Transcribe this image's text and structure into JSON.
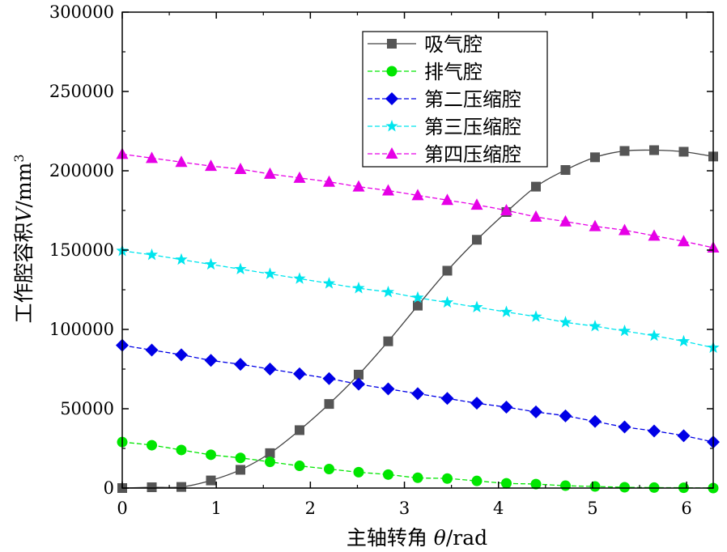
{
  "chart_data": {
    "type": "line",
    "title": "",
    "xlabel": "主轴转角 θ/rad",
    "xlabel_prefix": "主轴转角 ",
    "xlabel_symbol": "θ",
    "xlabel_suffix": "/rad",
    "ylabel": "工作腔容积V/mm3",
    "ylabel_prefix": "工作腔容积",
    "ylabel_symbol": "V",
    "ylabel_unit": "/mm",
    "ylabel_sup": "3",
    "xlim": [
      0,
      6.2832
    ],
    "ylim": [
      0,
      300000
    ],
    "xticks": [
      0,
      1,
      2,
      3,
      4,
      5,
      6
    ],
    "xtick_labels": [
      "0",
      "1",
      "2",
      "3",
      "4",
      "5",
      "6"
    ],
    "yticks": [
      0,
      50000,
      100000,
      150000,
      200000,
      250000,
      300000
    ],
    "ytick_labels": [
      "0",
      "50000",
      "100000",
      "150000",
      "200000",
      "250000",
      "300000"
    ],
    "legend_position": "top-center",
    "series": [
      {
        "name": "吸气腔",
        "color": "#555555",
        "marker": "square",
        "x": [
          0,
          0.3142,
          0.6283,
          0.9425,
          1.2566,
          1.5708,
          1.885,
          2.1991,
          2.5133,
          2.8274,
          3.1416,
          3.4558,
          3.7699,
          4.0841,
          4.3982,
          4.7124,
          5.0265,
          5.3407,
          5.6549,
          5.969,
          6.2832
        ],
        "values": [
          0,
          500,
          700,
          4800,
          11500,
          22000,
          36500,
          53000,
          71500,
          92500,
          115000,
          137000,
          156500,
          174000,
          190000,
          200500,
          208500,
          212500,
          213000,
          212000,
          209000
        ]
      },
      {
        "name": "排气腔",
        "color": "#00e600",
        "marker": "circle",
        "x": [
          0,
          0.3142,
          0.6283,
          0.9425,
          1.2566,
          1.5708,
          1.885,
          2.1991,
          2.5133,
          2.8274,
          3.1416,
          3.4558,
          3.7699,
          4.0841,
          4.3982,
          4.7124,
          5.0265,
          5.3407,
          5.6549,
          5.969,
          6.2832
        ],
        "values": [
          29000,
          27000,
          24000,
          21000,
          19000,
          16500,
          14000,
          12000,
          10000,
          8500,
          6500,
          6000,
          4500,
          3000,
          2500,
          1500,
          1000,
          500,
          300,
          200,
          0
        ]
      },
      {
        "name": "第二压缩腔",
        "color": "#0000e6",
        "marker": "diamond",
        "x": [
          0,
          0.3142,
          0.6283,
          0.9425,
          1.2566,
          1.5708,
          1.885,
          2.1991,
          2.5133,
          2.8274,
          3.1416,
          3.4558,
          3.7699,
          4.0841,
          4.3982,
          4.7124,
          5.0265,
          5.3407,
          5.6549,
          5.969,
          6.2832
        ],
        "values": [
          90000,
          87000,
          84000,
          80500,
          78000,
          75000,
          72000,
          69000,
          65500,
          62500,
          59500,
          56500,
          53500,
          51000,
          48000,
          45500,
          42000,
          38500,
          36000,
          33000,
          29000
        ]
      },
      {
        "name": "第三压缩腔",
        "color": "#00e5ee",
        "marker": "star",
        "x": [
          0,
          0.3142,
          0.6283,
          0.9425,
          1.2566,
          1.5708,
          1.885,
          2.1991,
          2.5133,
          2.8274,
          3.1416,
          3.4558,
          3.7699,
          4.0841,
          4.3982,
          4.7124,
          5.0265,
          5.3407,
          5.6549,
          5.969,
          6.2832
        ],
        "values": [
          149500,
          147000,
          144000,
          141000,
          138000,
          135000,
          132000,
          129000,
          126000,
          123500,
          120000,
          117000,
          114000,
          111000,
          108000,
          104500,
          102000,
          99000,
          96000,
          92500,
          88500
        ]
      },
      {
        "name": "第四压缩腔",
        "color": "#e600e6",
        "marker": "triangle",
        "x": [
          0,
          0.3142,
          0.6283,
          0.9425,
          1.2566,
          1.5708,
          1.885,
          2.1991,
          2.5133,
          2.8274,
          3.1416,
          3.4558,
          3.7699,
          4.0841,
          4.3982,
          4.7124,
          5.0265,
          5.3407,
          5.6549,
          5.969,
          6.2832
        ],
        "values": [
          210500,
          208000,
          205500,
          203000,
          201000,
          198000,
          195500,
          193000,
          190000,
          187500,
          184500,
          181500,
          178500,
          175000,
          171000,
          168000,
          165000,
          162500,
          159000,
          155500,
          151500
        ]
      }
    ]
  }
}
